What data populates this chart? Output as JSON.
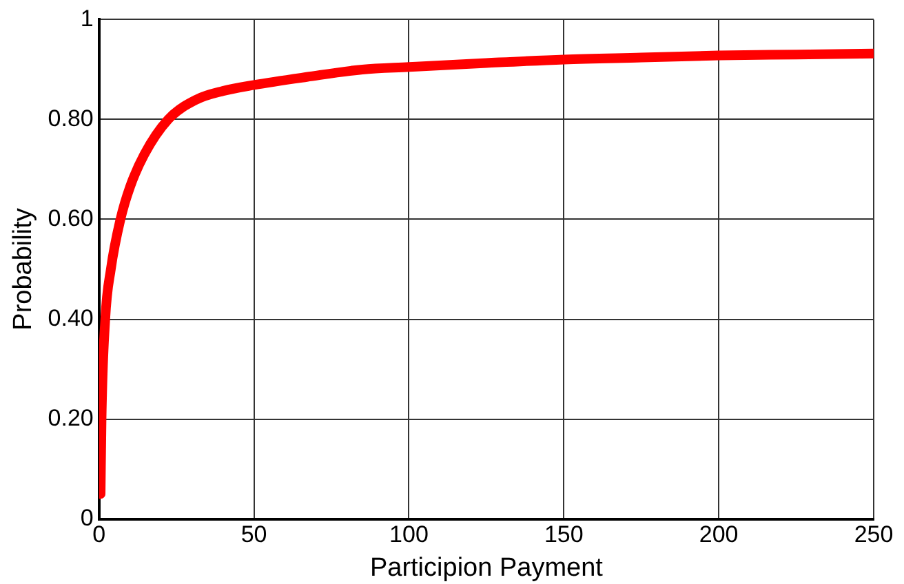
{
  "chart_data": {
    "type": "line",
    "xlabel": "Participion Payment",
    "ylabel": "Probability",
    "x": [
      0.5,
      0.8,
      2,
      3.8,
      6.9,
      10,
      14.6,
      22.3,
      31.5,
      40,
      50,
      67,
      85,
      100,
      125,
      150,
      175,
      200,
      225,
      250
    ],
    "series": [
      {
        "color": "#ff0000",
        "values": [
          0.05,
          0.2,
          0.4,
          0.5,
          0.6,
          0.665,
          0.73,
          0.8,
          0.84,
          0.857,
          0.869,
          0.885,
          0.9,
          0.905,
          0.913,
          0.92,
          0.924,
          0.928,
          0.93,
          0.932
        ]
      }
    ],
    "xlim": [
      0,
      250
    ],
    "xticks": [
      0,
      50,
      100,
      150,
      200,
      250
    ],
    "ylim": [
      0,
      1
    ],
    "yticks": [
      0,
      {
        "value": 0.2,
        "label": "0.20"
      },
      {
        "value": 0.4,
        "label": "0.40"
      },
      {
        "value": 0.6,
        "label": "0.60"
      },
      {
        "value": 0.8,
        "label": "0.80"
      },
      1
    ],
    "grid": true,
    "marker": "none",
    "line_style": "solid"
  }
}
